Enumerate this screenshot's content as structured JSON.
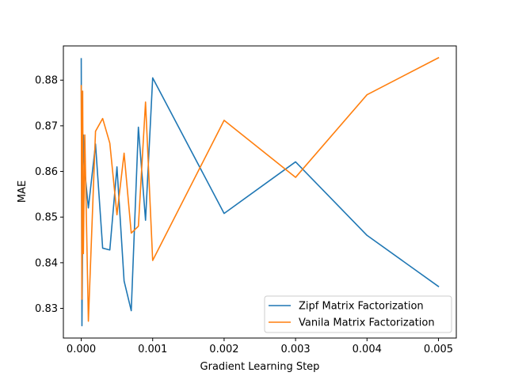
{
  "chart_data": {
    "type": "line",
    "title": "",
    "xlabel": "Gradient Learning Step",
    "ylabel": "MAE",
    "xlim": [
      -0.00025,
      0.00525
    ],
    "ylim": [
      0.8235,
      0.8875
    ],
    "xticks": [
      0.0,
      0.001,
      0.002,
      0.003,
      0.004,
      0.005
    ],
    "xtick_labels": [
      "0.000",
      "0.001",
      "0.002",
      "0.003",
      "0.004",
      "0.005"
    ],
    "yticks": [
      0.83,
      0.84,
      0.85,
      0.86,
      0.87,
      0.88
    ],
    "ytick_labels": [
      "0.83",
      "0.84",
      "0.85",
      "0.86",
      "0.87",
      "0.88"
    ],
    "grid": false,
    "legend_position": "lower-right",
    "series": [
      {
        "name": "Zipf Matrix Factorization",
        "color": "#1f77b4",
        "points": [
          [
            0.0,
            0.8847
          ],
          [
            1e-05,
            0.8262
          ],
          [
            2e-05,
            0.8475
          ],
          [
            3e-05,
            0.868
          ],
          [
            5e-05,
            0.86
          ],
          [
            0.0001,
            0.852
          ],
          [
            0.0002,
            0.866
          ],
          [
            0.0003,
            0.8432
          ],
          [
            0.0004,
            0.8428
          ],
          [
            0.0005,
            0.861
          ],
          [
            0.0006,
            0.836
          ],
          [
            0.0007,
            0.8295
          ],
          [
            0.0008,
            0.8697
          ],
          [
            0.0009,
            0.8493
          ],
          [
            0.001,
            0.8805
          ],
          [
            0.002,
            0.8508
          ],
          [
            0.003,
            0.8621
          ],
          [
            0.004,
            0.846
          ],
          [
            0.005,
            0.8348
          ]
        ]
      },
      {
        "name": "Vanila Matrix Factorization",
        "color": "#ff7f0e",
        "points": [
          [
            0.0,
            0.8788
          ],
          [
            1e-05,
            0.832
          ],
          [
            2e-05,
            0.8776
          ],
          [
            3e-05,
            0.842
          ],
          [
            5e-05,
            0.868
          ],
          [
            0.0001,
            0.8272
          ],
          [
            0.0002,
            0.8688
          ],
          [
            0.0003,
            0.8716
          ],
          [
            0.0004,
            0.8662
          ],
          [
            0.0005,
            0.8505
          ],
          [
            0.0006,
            0.864
          ],
          [
            0.0007,
            0.8465
          ],
          [
            0.0008,
            0.848
          ],
          [
            0.0009,
            0.8752
          ],
          [
            0.001,
            0.8405
          ],
          [
            0.002,
            0.8712
          ],
          [
            0.003,
            0.8587
          ],
          [
            0.004,
            0.8768
          ],
          [
            0.005,
            0.8849
          ]
        ]
      }
    ]
  }
}
